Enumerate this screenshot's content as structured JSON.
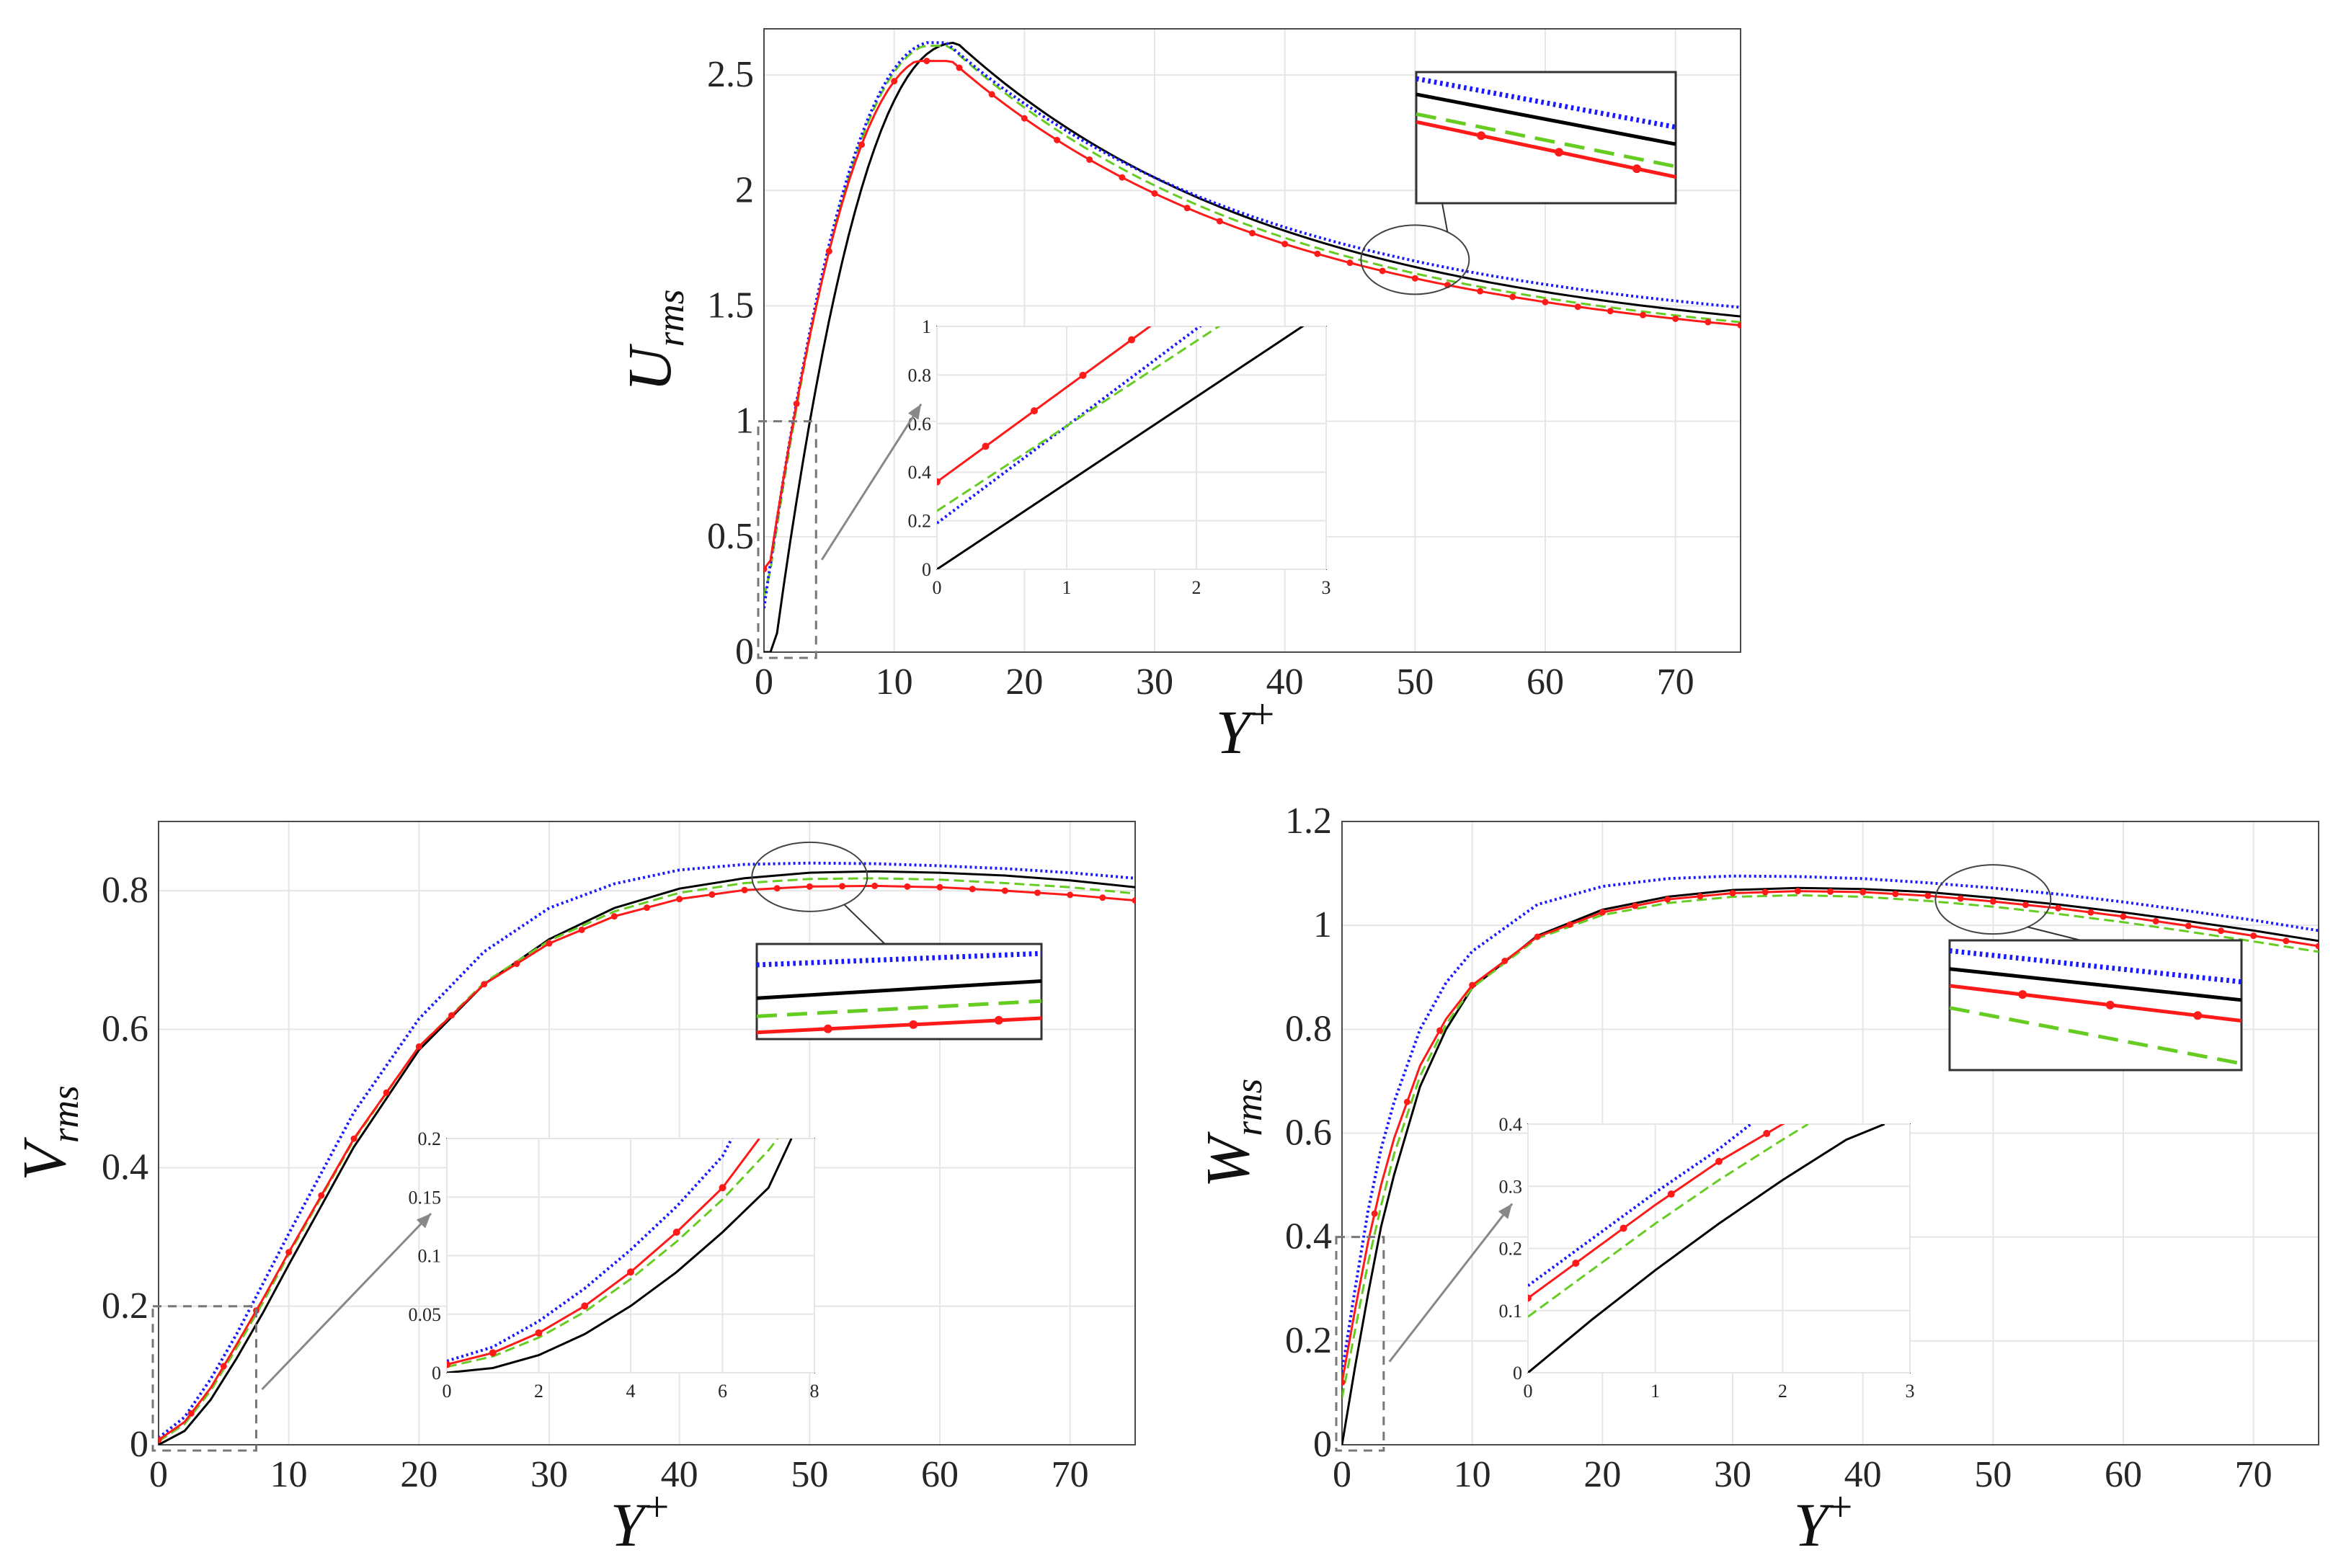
{
  "figure": {
    "description_series": [
      {
        "name": "series-black",
        "color": "#000000",
        "dash": "solid",
        "marker": "none"
      },
      {
        "name": "series-blue",
        "color": "#1a1aff",
        "dash": "dotted",
        "marker": "none"
      },
      {
        "name": "series-green",
        "color": "#66cc22",
        "dash": "dashed",
        "marker": "none"
      },
      {
        "name": "series-red",
        "color": "#ff1a1a",
        "dash": "solid",
        "marker": "dot"
      }
    ]
  },
  "chart_data": [
    {
      "id": "urms",
      "type": "line",
      "xlabel": "Y",
      "xlabel_sup": "+",
      "ylabel": "U",
      "ylabel_sub": "rms",
      "xlim": [
        0,
        75
      ],
      "ylim": [
        0,
        2.7
      ],
      "xticks": [
        0,
        10,
        20,
        30,
        40,
        50,
        60,
        70
      ],
      "xtick_labels": [
        "0",
        "10",
        "20",
        "30",
        "40",
        "50",
        "60",
        "70"
      ],
      "yticks": [
        0,
        0.5,
        1,
        1.5,
        2,
        2.5
      ],
      "ytick_labels": [
        "0",
        "0.5",
        "1",
        "1.5",
        "2",
        "2.5"
      ],
      "curve": {
        "slope0": 0.35,
        "peak_x": 14,
        "peak_y": 2.64,
        "end_y": 1.45,
        "decay": 0.042
      },
      "series": [
        {
          "name": "series-black",
          "offset": 0,
          "peak_scale": 1.0,
          "end_scale": 1.0,
          "xshift": 0.8
        },
        {
          "name": "series-blue",
          "offset": 0.19,
          "peak_scale": 1.0,
          "end_scale": 1.03,
          "xshift": 0
        },
        {
          "name": "series-green",
          "offset": 0.24,
          "peak_scale": 0.995,
          "end_scale": 0.985,
          "xshift": 0.2
        },
        {
          "name": "series-red",
          "offset": 0.36,
          "peak_scale": 0.97,
          "end_scale": 0.975,
          "xshift": 0.4
        }
      ],
      "inset": {
        "xlim": [
          0,
          3
        ],
        "ylim": [
          0,
          1
        ],
        "xticks": [
          "0",
          "1",
          "2",
          "3"
        ],
        "yticks": [
          "0",
          "0.2",
          "0.4",
          "0.6",
          "0.8",
          "1"
        ],
        "lines": [
          {
            "name": "series-black",
            "y0": 0,
            "slope": 0.355
          },
          {
            "name": "series-blue",
            "y0": 0.19,
            "slope": 0.4
          },
          {
            "name": "series-green",
            "y0": 0.24,
            "slope": 0.35
          },
          {
            "name": "series-red",
            "y0": 0.36,
            "slope": 0.39
          }
        ]
      },
      "zoom_box": {
        "x": [
          0,
          4
        ],
        "y": [
          0,
          1
        ]
      },
      "detail_ellipse": {
        "cx": 50,
        "cy": 1.7
      }
    },
    {
      "id": "vrms",
      "type": "line",
      "xlabel": "Y",
      "xlabel_sup": "+",
      "ylabel": "V",
      "ylabel_sub": "rms",
      "xlim": [
        0,
        75
      ],
      "ylim": [
        0,
        0.9
      ],
      "xticks": [
        0,
        10,
        20,
        30,
        40,
        50,
        60,
        70
      ],
      "xtick_labels": [
        "0",
        "10",
        "20",
        "30",
        "40",
        "50",
        "60",
        "70"
      ],
      "yticks": [
        0,
        0.2,
        0.4,
        0.6,
        0.8
      ],
      "ytick_labels": [
        "0",
        "0.2",
        "0.4",
        "0.6",
        "0.8"
      ],
      "series": [
        {
          "name": "series-black",
          "x": [
            0,
            2,
            4,
            6,
            8,
            10,
            15,
            20,
            25,
            30,
            35,
            40,
            45,
            50,
            55,
            60,
            65,
            70,
            75
          ],
          "y": [
            0,
            0.02,
            0.065,
            0.125,
            0.19,
            0.26,
            0.43,
            0.57,
            0.665,
            0.73,
            0.775,
            0.803,
            0.818,
            0.826,
            0.828,
            0.826,
            0.822,
            0.815,
            0.805
          ]
        },
        {
          "name": "series-blue",
          "x": [
            0,
            2,
            4,
            6,
            8,
            10,
            15,
            20,
            25,
            30,
            35,
            40,
            45,
            50,
            55,
            60,
            65,
            70,
            75
          ],
          "y": [
            0.01,
            0.04,
            0.095,
            0.16,
            0.232,
            0.305,
            0.48,
            0.615,
            0.712,
            0.775,
            0.81,
            0.83,
            0.838,
            0.84,
            0.839,
            0.836,
            0.832,
            0.826,
            0.818
          ]
        },
        {
          "name": "series-green",
          "x": [
            0,
            2,
            4,
            6,
            8,
            10,
            15,
            20,
            25,
            30,
            35,
            40,
            45,
            50,
            55,
            60,
            65,
            70,
            75
          ],
          "y": [
            0.005,
            0.03,
            0.078,
            0.14,
            0.205,
            0.275,
            0.44,
            0.575,
            0.667,
            0.728,
            0.77,
            0.797,
            0.811,
            0.817,
            0.818,
            0.816,
            0.811,
            0.805,
            0.796
          ]
        },
        {
          "name": "series-red",
          "x": [
            0,
            2,
            4,
            6,
            8,
            10,
            15,
            20,
            25,
            30,
            35,
            40,
            45,
            50,
            55,
            60,
            65,
            70,
            75
          ],
          "y": [
            0.007,
            0.033,
            0.082,
            0.145,
            0.21,
            0.278,
            0.442,
            0.575,
            0.665,
            0.724,
            0.763,
            0.788,
            0.801,
            0.806,
            0.807,
            0.805,
            0.8,
            0.794,
            0.786
          ]
        }
      ],
      "inset": {
        "xlim": [
          0,
          8
        ],
        "ylim": [
          0,
          0.2
        ],
        "xticks": [
          "0",
          "2",
          "4",
          "6",
          "8"
        ],
        "yticks": [
          "0",
          "0.05",
          "0.1",
          "0.15",
          "0.2"
        ],
        "lines": [
          {
            "name": "series-black",
            "x": [
              0,
              1,
              2,
              3,
              4,
              5,
              6,
              7,
              7.5
            ],
            "y": [
              0,
              0.004,
              0.015,
              0.033,
              0.057,
              0.086,
              0.12,
              0.158,
              0.2
            ]
          },
          {
            "name": "series-blue",
            "x": [
              0,
              1,
              2,
              3,
              4,
              5,
              6,
              6.2
            ],
            "y": [
              0.01,
              0.022,
              0.044,
              0.072,
              0.105,
              0.142,
              0.185,
              0.2
            ]
          },
          {
            "name": "series-green",
            "x": [
              0,
              1,
              2,
              3,
              4,
              5,
              6,
              7,
              7.2
            ],
            "y": [
              0.005,
              0.014,
              0.03,
              0.052,
              0.08,
              0.112,
              0.148,
              0.19,
              0.2
            ]
          },
          {
            "name": "series-red",
            "x": [
              0,
              1,
              2,
              3,
              4,
              5,
              6,
              6.8
            ],
            "y": [
              0.007,
              0.017,
              0.034,
              0.057,
              0.086,
              0.12,
              0.158,
              0.2
            ]
          }
        ]
      },
      "zoom_box": {
        "x": [
          0,
          7.5
        ],
        "y": [
          0,
          0.2
        ]
      },
      "detail_ellipse": {
        "cx": 50,
        "cy": 0.82
      }
    },
    {
      "id": "wrms",
      "type": "line",
      "xlabel": "Y",
      "xlabel_sup": "+",
      "ylabel": "W",
      "ylabel_sub": "rms",
      "xlim": [
        0,
        75
      ],
      "ylim": [
        0,
        1.2
      ],
      "xticks": [
        0,
        10,
        20,
        30,
        40,
        50,
        60,
        70
      ],
      "xtick_labels": [
        "0",
        "10",
        "20",
        "30",
        "40",
        "50",
        "60",
        "70"
      ],
      "yticks": [
        0,
        0.2,
        0.4,
        0.6,
        0.8,
        1,
        1.2
      ],
      "ytick_labels": [
        "0",
        "0.2",
        "0.4",
        "0.6",
        "0.8",
        "1",
        "1.2"
      ],
      "series": [
        {
          "name": "series-black",
          "x": [
            0,
            1,
            2,
            3,
            4,
            6,
            8,
            10,
            15,
            20,
            25,
            30,
            35,
            40,
            45,
            50,
            55,
            60,
            65,
            70,
            75
          ],
          "y": [
            0,
            0.15,
            0.29,
            0.42,
            0.52,
            0.69,
            0.8,
            0.88,
            0.98,
            1.03,
            1.055,
            1.068,
            1.072,
            1.07,
            1.064,
            1.053,
            1.04,
            1.025,
            1.008,
            0.99,
            0.97
          ]
        },
        {
          "name": "series-blue",
          "x": [
            0,
            1,
            2,
            3,
            4,
            6,
            8,
            10,
            15,
            20,
            25,
            30,
            35,
            40,
            45,
            50,
            55,
            60,
            65,
            70,
            75
          ],
          "y": [
            0.14,
            0.3,
            0.45,
            0.57,
            0.66,
            0.8,
            0.89,
            0.95,
            1.04,
            1.075,
            1.09,
            1.095,
            1.094,
            1.09,
            1.082,
            1.072,
            1.06,
            1.045,
            1.028,
            1.01,
            0.99
          ]
        },
        {
          "name": "series-green",
          "x": [
            0,
            1,
            2,
            3,
            4,
            6,
            8,
            10,
            15,
            20,
            25,
            30,
            35,
            40,
            45,
            50,
            55,
            60,
            65,
            70,
            75
          ],
          "y": [
            0.09,
            0.22,
            0.35,
            0.46,
            0.56,
            0.71,
            0.81,
            0.88,
            0.975,
            1.02,
            1.043,
            1.055,
            1.058,
            1.055,
            1.047,
            1.036,
            1.022,
            1.006,
            0.988,
            0.969,
            0.949
          ]
        },
        {
          "name": "series-red",
          "x": [
            0,
            1,
            2,
            3,
            4,
            6,
            8,
            10,
            15,
            20,
            25,
            30,
            35,
            40,
            45,
            50,
            55,
            60,
            65,
            70,
            75
          ],
          "y": [
            0.12,
            0.26,
            0.39,
            0.5,
            0.59,
            0.73,
            0.82,
            0.885,
            0.978,
            1.025,
            1.05,
            1.062,
            1.066,
            1.064,
            1.057,
            1.046,
            1.033,
            1.017,
            0.999,
            0.98,
            0.96
          ]
        }
      ],
      "inset": {
        "xlim": [
          0,
          3
        ],
        "ylim": [
          0,
          0.4
        ],
        "xticks": [
          "0",
          "1",
          "2",
          "3"
        ],
        "yticks": [
          "0",
          "0.1",
          "0.2",
          "0.3",
          "0.4"
        ],
        "lines": [
          {
            "name": "series-black",
            "x": [
              0,
              0.5,
              1,
              1.5,
              2,
              2.5,
              2.8
            ],
            "y": [
              0,
              0.085,
              0.165,
              0.24,
              0.31,
              0.375,
              0.4
            ]
          },
          {
            "name": "series-blue",
            "x": [
              0,
              0.5,
              1,
              1.5,
              1.75
            ],
            "y": [
              0.14,
              0.215,
              0.29,
              0.36,
              0.4
            ]
          },
          {
            "name": "series-green",
            "x": [
              0,
              0.5,
              1,
              1.5,
              2,
              2.2
            ],
            "y": [
              0.09,
              0.165,
              0.24,
              0.31,
              0.375,
              0.4
            ]
          },
          {
            "name": "series-red",
            "x": [
              0,
              0.5,
              1,
              1.5,
              2,
              2.1
            ],
            "y": [
              0.12,
              0.195,
              0.27,
              0.34,
              0.4,
              0.41
            ]
          }
        ]
      },
      "zoom_box": {
        "x": [
          0,
          3.2
        ],
        "y": [
          0,
          0.4
        ]
      },
      "detail_ellipse": {
        "cx": 50,
        "cy": 1.05
      }
    }
  ]
}
